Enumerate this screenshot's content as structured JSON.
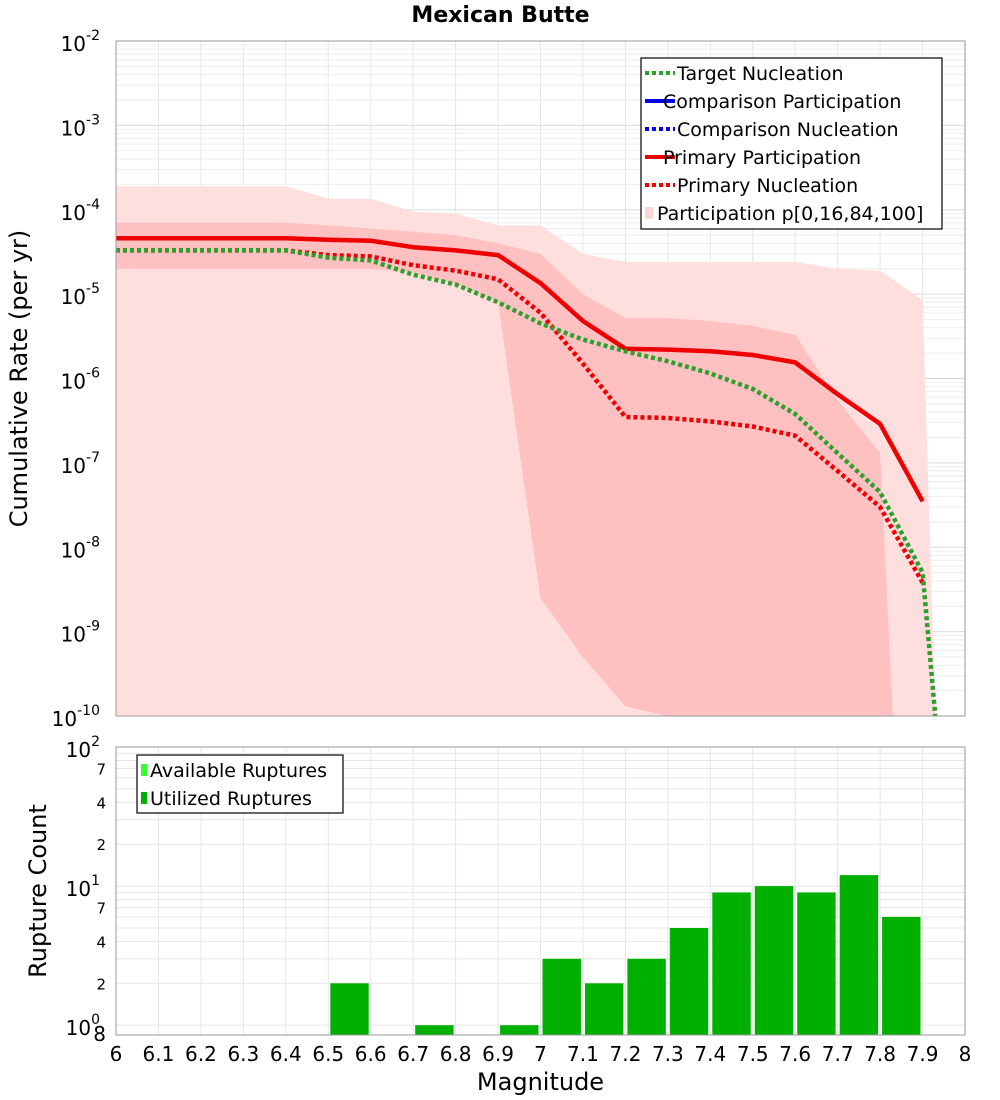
{
  "chart_data": [
    {
      "type": "line",
      "title": "Mexican Butte",
      "xlabel": "",
      "ylabel": "Cumulative Rate (per yr)",
      "y_scale": "log",
      "xlim": [
        6,
        8
      ],
      "ylim": [
        1e-10,
        0.01
      ],
      "y_tick_labels": [
        {
          "base": "10",
          "exp": "-10",
          "value": 1e-10
        },
        {
          "base": "10",
          "exp": "-9",
          "value": 1e-09
        },
        {
          "base": "10",
          "exp": "-8",
          "value": 1e-08
        },
        {
          "base": "10",
          "exp": "-7",
          "value": 1e-07
        },
        {
          "base": "10",
          "exp": "-6",
          "value": 1e-06
        },
        {
          "base": "10",
          "exp": "-5",
          "value": 1e-05
        },
        {
          "base": "10",
          "exp": "-4",
          "value": 0.0001
        },
        {
          "base": "10",
          "exp": "-3",
          "value": 0.001
        },
        {
          "base": "10",
          "exp": "-2",
          "value": 0.01
        }
      ],
      "grid": true,
      "legend_position": "top-right",
      "legend": [
        {
          "label": "Target Nucleation",
          "color": "#2ca02c",
          "style": "dotted"
        },
        {
          "label": "Comparison Participation",
          "color": "#0000ee",
          "style": "solid"
        },
        {
          "label": "Comparison Nucleation",
          "color": "#0000ee",
          "style": "dotted"
        },
        {
          "label": "Primary Participation",
          "color": "#ee0000",
          "style": "solid"
        },
        {
          "label": "Primary Nucleation",
          "color": "#ee0000",
          "style": "dotted"
        },
        {
          "label": "Participation p[0,16,84,100]",
          "color": "#ffd6d8",
          "style": "fill"
        }
      ],
      "bands": [
        {
          "name": "p0-p100",
          "color": "#ffdede",
          "x": [
            6.0,
            6.4,
            6.5,
            6.6,
            6.7,
            6.8,
            6.9,
            7.0,
            7.1,
            7.2,
            7.3,
            7.4,
            7.5,
            7.6,
            7.7,
            7.8,
            7.9,
            7.93
          ],
          "upper": [
            0.00019,
            0.00019,
            0.000135,
            0.000135,
            9.5e-05,
            9e-05,
            6.5e-05,
            6.5e-05,
            3e-05,
            2.4e-05,
            2.4e-05,
            2.4e-05,
            2.4e-05,
            2.4e-05,
            2e-05,
            1.9e-05,
            8.5e-06,
            1e-10
          ],
          "lower": [
            1e-10,
            1e-10,
            1e-10,
            1e-10,
            1e-10,
            1e-10,
            1e-10,
            1e-10,
            1e-10,
            1e-10,
            1e-10,
            1e-10,
            1e-10,
            1e-10,
            1e-10,
            1e-10,
            1e-10,
            1e-10
          ]
        },
        {
          "name": "p16-p84",
          "color": "#ffc0c2",
          "x": [
            6.0,
            6.4,
            6.5,
            6.6,
            6.7,
            6.8,
            6.9,
            7.0,
            7.1,
            7.2,
            7.3,
            7.4,
            7.5,
            7.6,
            7.7,
            7.8,
            7.83
          ],
          "upper": [
            7e-05,
            7e-05,
            6.5e-05,
            6e-05,
            5.5e-05,
            5e-05,
            4e-05,
            3e-05,
            1e-05,
            5.2e-06,
            5.2e-06,
            4.8e-06,
            4.2e-06,
            3.3e-06,
            5.5e-07,
            1.3e-07,
            1e-10
          ],
          "lower": [
            2e-05,
            2e-05,
            2e-05,
            2e-05,
            1.8e-05,
            1.3e-05,
            8e-06,
            2.5e-09,
            5e-10,
            1.3e-10,
            1e-10,
            1e-10,
            1e-10,
            1e-10,
            1e-10,
            1e-10,
            1e-10
          ]
        }
      ],
      "series": [
        {
          "name": "Primary Participation",
          "color": "#ee0000",
          "style": "solid",
          "x": [
            6.0,
            6.1,
            6.2,
            6.3,
            6.4,
            6.5,
            6.6,
            6.7,
            6.8,
            6.9,
            7.0,
            7.1,
            7.2,
            7.3,
            7.4,
            7.5,
            7.6,
            7.7,
            7.8,
            7.9
          ],
          "y": [
            4.6e-05,
            4.6e-05,
            4.6e-05,
            4.6e-05,
            4.6e-05,
            4.4e-05,
            4.3e-05,
            3.6e-05,
            3.3e-05,
            2.9e-05,
            1.35e-05,
            4.8e-06,
            2.25e-06,
            2.2e-06,
            2.1e-06,
            1.9e-06,
            1.55e-06,
            6.5e-07,
            2.9e-07,
            3.5e-08
          ]
        },
        {
          "name": "Primary Nucleation",
          "color": "#ee0000",
          "style": "dotted",
          "x": [
            6.0,
            6.1,
            6.2,
            6.3,
            6.4,
            6.5,
            6.6,
            6.7,
            6.8,
            6.9,
            7.0,
            7.1,
            7.2,
            7.3,
            7.4,
            7.5,
            7.6,
            7.7,
            7.8,
            7.9
          ],
          "y": [
            3.3e-05,
            3.3e-05,
            3.3e-05,
            3.3e-05,
            3.3e-05,
            2.9e-05,
            2.8e-05,
            2.2e-05,
            1.9e-05,
            1.5e-05,
            6e-06,
            1.5e-06,
            3.5e-07,
            3.4e-07,
            3.1e-07,
            2.7e-07,
            2.1e-07,
            8e-08,
            3e-08,
            3.8e-09
          ]
        },
        {
          "name": "Target Nucleation",
          "color": "#2ca02c",
          "style": "dotted",
          "x": [
            6.0,
            6.1,
            6.2,
            6.3,
            6.4,
            6.5,
            6.6,
            6.7,
            6.8,
            6.9,
            7.0,
            7.1,
            7.2,
            7.3,
            7.4,
            7.5,
            7.6,
            7.7,
            7.8,
            7.9,
            7.93
          ],
          "y": [
            3.3e-05,
            3.3e-05,
            3.3e-05,
            3.3e-05,
            3.3e-05,
            2.7e-05,
            2.5e-05,
            1.7e-05,
            1.3e-05,
            8e-06,
            4.5e-06,
            2.9e-06,
            2.1e-06,
            1.6e-06,
            1.15e-06,
            7.5e-07,
            3.8e-07,
            1.3e-07,
            4.5e-08,
            5e-09,
            1e-10
          ]
        }
      ]
    },
    {
      "type": "bar",
      "xlabel": "Magnitude",
      "ylabel": "Rupture Count",
      "y_scale": "log",
      "xlim": [
        6,
        8
      ],
      "ylim": [
        0.85,
        100
      ],
      "x_ticks": [
        "6",
        "6.1",
        "6.2",
        "6.3",
        "6.4",
        "6.5",
        "6.6",
        "6.7",
        "6.8",
        "6.9",
        "7",
        "7.1",
        "7.2",
        "7.3",
        "7.4",
        "7.5",
        "7.6",
        "7.7",
        "7.8",
        "7.9",
        "8"
      ],
      "y_major_ticks": [
        {
          "base": "10",
          "exp": "0",
          "value": 1
        },
        {
          "base": "10",
          "exp": "1",
          "value": 10
        },
        {
          "base": "10",
          "exp": "2",
          "value": 100
        }
      ],
      "y_minor_ticks": [
        {
          "label": "2",
          "value": 2
        },
        {
          "label": "4",
          "value": 4
        },
        {
          "label": "7",
          "value": 7
        },
        {
          "label": "2",
          "value": 20
        },
        {
          "label": "4",
          "value": 40
        },
        {
          "label": "7",
          "value": 70
        }
      ],
      "y_bottom_label": "8",
      "grid": true,
      "legend_position": "top-left",
      "legend": [
        {
          "label": "Available Ruptures",
          "color": "#33ff33"
        },
        {
          "label": "Utilized Ruptures",
          "color": "#00b000"
        }
      ],
      "bar_color": "#00b000",
      "bars": [
        {
          "x": 6.55,
          "value": 2
        },
        {
          "x": 6.75,
          "value": 1
        },
        {
          "x": 6.95,
          "value": 1
        },
        {
          "x": 7.05,
          "value": 3
        },
        {
          "x": 7.15,
          "value": 2
        },
        {
          "x": 7.25,
          "value": 3
        },
        {
          "x": 7.35,
          "value": 5
        },
        {
          "x": 7.45,
          "value": 9
        },
        {
          "x": 7.55,
          "value": 10
        },
        {
          "x": 7.65,
          "value": 9
        },
        {
          "x": 7.75,
          "value": 12
        },
        {
          "x": 7.85,
          "value": 6
        }
      ]
    }
  ]
}
